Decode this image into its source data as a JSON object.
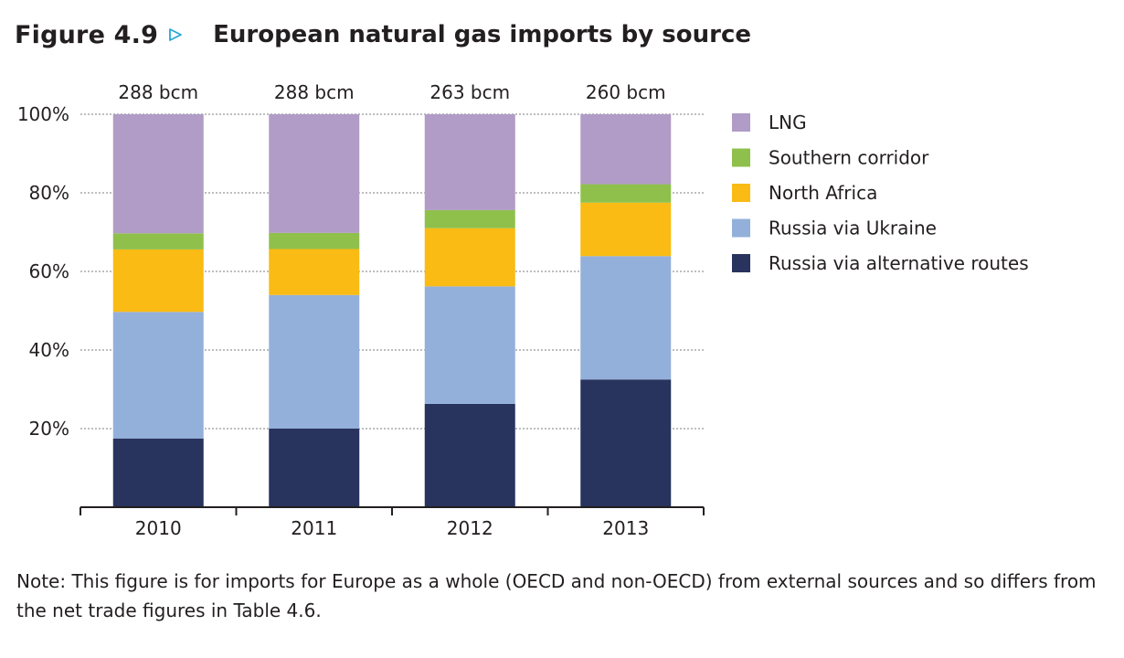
{
  "figure": {
    "label": "Figure 4.9",
    "arrow_icon": "triangle-outline-right-icon",
    "title": "European natural gas imports by source"
  },
  "chart_data": {
    "type": "bar",
    "stacked": true,
    "title": "European natural gas imports by source",
    "xlabel": "",
    "ylabel": "",
    "categories": [
      "2010",
      "2011",
      "2012",
      "2013"
    ],
    "totals": [
      "288 bcm",
      "288 bcm",
      "263 bcm",
      "260 bcm"
    ],
    "ylim": [
      0,
      100
    ],
    "yticks": [
      20,
      40,
      60,
      80,
      100
    ],
    "ytick_labels": [
      "20%",
      "40%",
      "60%",
      "80%",
      "100%"
    ],
    "grid": "dotted horizontal at ticks",
    "legend_position": "right",
    "series": [
      {
        "name": "Russia via alternative routes",
        "color": "#28335e",
        "values": [
          17.5,
          20,
          26.3,
          32.5
        ]
      },
      {
        "name": "Russia via Ukraine",
        "color": "#93b0da",
        "values": [
          32.2,
          34,
          29.9,
          31.4
        ]
      },
      {
        "name": "North Africa",
        "color": "#f9bb14",
        "values": [
          15.9,
          11.7,
          14.8,
          13.6
        ]
      },
      {
        "name": "Southern corridor",
        "color": "#8fc04c",
        "values": [
          4.1,
          4.1,
          4.6,
          4.7
        ]
      },
      {
        "name": "LNG",
        "color": "#b09cc6",
        "values": [
          30.3,
          30.2,
          24.4,
          17.8
        ]
      }
    ],
    "legend_order": [
      "LNG",
      "Southern corridor",
      "North Africa",
      "Russia via Ukraine",
      "Russia via alternative routes"
    ]
  },
  "note": "Note: This figure is for imports for Europe as a whole (OECD and non-OECD) from external sources and so differs from the net trade figures in Table 4.6."
}
